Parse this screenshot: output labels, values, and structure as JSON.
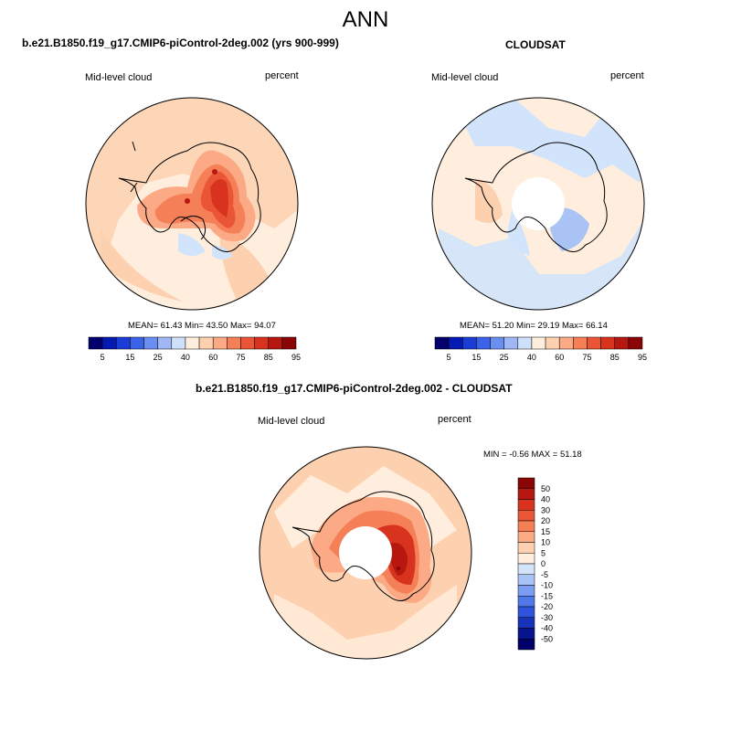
{
  "page_title": "ANN",
  "panels": [
    {
      "title": "b.e21.B1850.f19_g17.CMIP6-piControl-2deg.002 (yrs 900-999)",
      "left_label": "Mid-level cloud",
      "right_label": "percent",
      "stats": "MEAN=  61.43  Min=  43.50  Max=  94.07"
    },
    {
      "title": "CLOUDSAT",
      "left_label": "Mid-level cloud",
      "right_label": "percent",
      "stats": "MEAN=  51.20  Min=  29.19  Max=  66.14"
    },
    {
      "title": "b.e21.B1850.f19_g17.CMIP6-piControl-2deg.002 - CLOUDSAT",
      "left_label": "Mid-level cloud",
      "right_label": "percent",
      "stats": "MIN =  -0.56 MAX =  51.18"
    }
  ],
  "colorbar_abs": {
    "labels": [
      "5",
      "15",
      "25",
      "40",
      "60",
      "75",
      "85",
      "95"
    ],
    "colors": [
      "#03006e",
      "#0519b3",
      "#1c3cd6",
      "#3b63e8",
      "#6b8ff0",
      "#9fb8f5",
      "#cfe0fb",
      "#ffeedd",
      "#fdd0b0",
      "#fbaa85",
      "#f57f57",
      "#ea5535",
      "#d7331f",
      "#b61810",
      "#8a0606"
    ]
  },
  "colorbar_diff": {
    "labels": [
      "50",
      "40",
      "30",
      "20",
      "15",
      "10",
      "5",
      "0",
      "-5",
      "-10",
      "-15",
      "-20",
      "-30",
      "-40",
      "-50"
    ],
    "colors": [
      "#8a0606",
      "#b61810",
      "#d7331f",
      "#ea5535",
      "#f57f57",
      "#fbaa85",
      "#fdd0b0",
      "#ffeedd",
      "#d2e4fb",
      "#aac3f5",
      "#7d9df0",
      "#5078e8",
      "#2f53dc",
      "#1832b8",
      "#08148e",
      "#020066"
    ]
  }
}
